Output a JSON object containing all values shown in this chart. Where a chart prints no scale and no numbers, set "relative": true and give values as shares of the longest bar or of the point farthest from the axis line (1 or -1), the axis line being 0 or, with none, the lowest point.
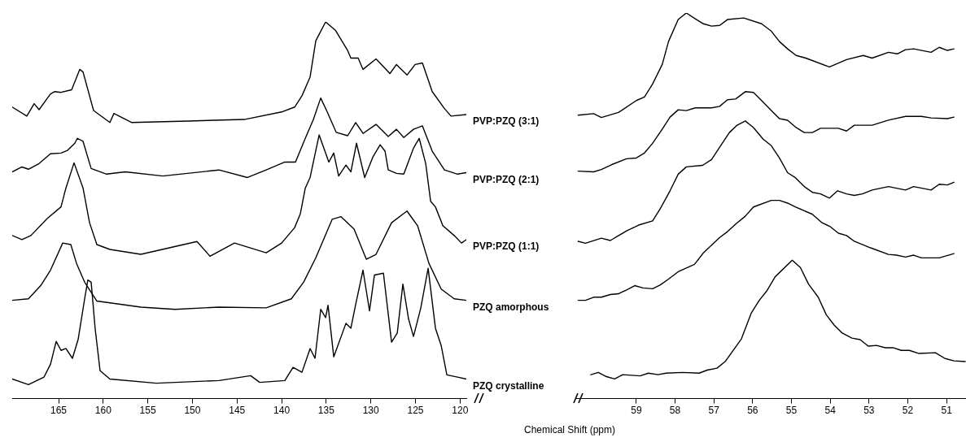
{
  "chart_data": [
    {
      "type": "line",
      "relative": true,
      "xlabel": "Chemical Shift (ppm)",
      "xlim": [
        170.2,
        119.3
      ],
      "xticks": [
        165,
        160,
        155,
        150,
        145,
        140,
        135,
        130,
        125,
        120
      ],
      "tick_labels": "x",
      "marker": "none",
      "series": [
        {
          "name": "PVP:PZQ (3:1)",
          "color": "#000000",
          "x": [
            170.2,
            168.56,
            167.74,
            167.19,
            165.91,
            165.46,
            164.73,
            163.54,
            162.63,
            162.26,
            161.08,
            159.25,
            158.8,
            156.79,
            150.49,
            144.2,
            140.0,
            138.54,
            137.72,
            136.81,
            136.17,
            135.07,
            133.98,
            132.6,
            132.24,
            131.42,
            130.88,
            129.42,
            127.86,
            127.13,
            125.95,
            125.04,
            124.22,
            123.12,
            121.75,
            121.02,
            119.3
          ],
          "values": [
            0.774,
            0.75,
            0.783,
            0.767,
            0.809,
            0.815,
            0.813,
            0.82,
            0.874,
            0.867,
            0.765,
            0.733,
            0.757,
            0.733,
            0.737,
            0.741,
            0.761,
            0.774,
            0.804,
            0.854,
            0.95,
            1,
            0.978,
            0.924,
            0.904,
            0.904,
            0.874,
            0.902,
            0.863,
            0.887,
            0.859,
            0.887,
            0.891,
            0.815,
            0.77,
            0.75,
            0.754
          ]
        },
        {
          "name": "PVP:PZQ (2:1)",
          "color": "#000000",
          "x": [
            170.2,
            169.11,
            168.38,
            167.19,
            165.91,
            164.73,
            164.0,
            163.18,
            162.9,
            162.26,
            161.35,
            159.62,
            157.52,
            153.32,
            147.03,
            143.83,
            141.73,
            139.64,
            138.45,
            137.35,
            136.44,
            135.62,
            134.89,
            133.89,
            132.6,
            131.7,
            130.88,
            129.42,
            128.05,
            127.13,
            126.31,
            125.22,
            124.22,
            123.12,
            121.75,
            120.29,
            119.3
          ],
          "values": [
            0.602,
            0.615,
            0.609,
            0.624,
            0.65,
            0.652,
            0.659,
            0.678,
            0.691,
            0.683,
            0.611,
            0.596,
            0.602,
            0.591,
            0.607,
            0.587,
            0.607,
            0.628,
            0.628,
            0.691,
            0.741,
            0.798,
            0.761,
            0.707,
            0.698,
            0.733,
            0.704,
            0.728,
            0.696,
            0.715,
            0.693,
            0.715,
            0.724,
            0.657,
            0.607,
            0.596,
            0.6
          ]
        },
        {
          "name": "PVP:PZQ (1:1)",
          "color": "#000000",
          "x": [
            170.2,
            169.11,
            168.1,
            166.28,
            164.73,
            164.18,
            163.27,
            162.26,
            161.53,
            160.71,
            159.25,
            155.78,
            149.49,
            148.03,
            145.29,
            141.73,
            140.0,
            138.54,
            137.9,
            137.35,
            136.81,
            135.8,
            134.71,
            134.16,
            133.61,
            132.79,
            132.24,
            131.61,
            130.69,
            129.78,
            128.96,
            128.41,
            128.05,
            127.13,
            126.31,
            125.22,
            124.58,
            123.85,
            123.3,
            122.76,
            121.93,
            120.66,
            119.84,
            119.3
          ],
          "values": [
            0.433,
            0.422,
            0.433,
            0.478,
            0.509,
            0.559,
            0.626,
            0.559,
            0.467,
            0.409,
            0.396,
            0.383,
            0.417,
            0.378,
            0.413,
            0.387,
            0.413,
            0.454,
            0.491,
            0.559,
            0.587,
            0.7,
            0.628,
            0.652,
            0.591,
            0.62,
            0.602,
            0.678,
            0.587,
            0.641,
            0.674,
            0.657,
            0.607,
            0.598,
            0.596,
            0.665,
            0.691,
            0.624,
            0.524,
            0.509,
            0.459,
            0.433,
            0.413,
            0.422
          ]
        },
        {
          "name": "PZQ amorphous",
          "color": "#000000",
          "x": [
            170.2,
            168.38,
            167.01,
            165.91,
            164.54,
            163.63,
            162.99,
            162.08,
            160.71,
            155.78,
            151.95,
            147.03,
            141.73,
            138.91,
            137.54,
            136.17,
            134.34,
            133.34,
            131.88,
            130.51,
            129.42,
            127.68,
            125.95,
            124.76,
            123.49,
            122.12,
            120.66,
            119.3
          ],
          "values": [
            0.261,
            0.265,
            0.3,
            0.341,
            0.413,
            0.409,
            0.359,
            0.309,
            0.259,
            0.243,
            0.237,
            0.243,
            0.241,
            0.265,
            0.309,
            0.374,
            0.476,
            0.483,
            0.45,
            0.37,
            0.383,
            0.467,
            0.498,
            0.459,
            0.359,
            0.291,
            0.265,
            0.261
          ]
        },
        {
          "name": "PZQ crystalline",
          "color": "#000000",
          "x": [
            170.2,
            168.38,
            166.64,
            165.91,
            165.27,
            164.73,
            164.18,
            163.45,
            162.81,
            162.08,
            161.72,
            161.35,
            160.89,
            160.35,
            159.25,
            154.05,
            147.03,
            143.47,
            142.46,
            139.64,
            138.72,
            137.72,
            136.81,
            136.26,
            135.62,
            135.07,
            134.8,
            134.16,
            132.79,
            132.24,
            131.7,
            130.88,
            130.15,
            129.6,
            128.59,
            127.68,
            127.04,
            126.41,
            125.77,
            125.22,
            124.4,
            123.58,
            122.76,
            122.12,
            121.48,
            120.29,
            119.3
          ],
          "values": [
            0.052,
            0.037,
            0.057,
            0.091,
            0.152,
            0.128,
            0.133,
            0.107,
            0.157,
            0.265,
            0.315,
            0.309,
            0.183,
            0.074,
            0.052,
            0.041,
            0.048,
            0.061,
            0.043,
            0.048,
            0.083,
            0.07,
            0.133,
            0.107,
            0.237,
            0.215,
            0.248,
            0.111,
            0.2,
            0.187,
            0.25,
            0.341,
            0.233,
            0.328,
            0.333,
            0.15,
            0.174,
            0.304,
            0.211,
            0.165,
            0.241,
            0.346,
            0.187,
            0.141,
            0.063,
            0.057,
            0.052
          ]
        }
      ]
    },
    {
      "type": "line",
      "relative": true,
      "xlim": [
        60.55,
        50.5
      ],
      "xticks": [
        59,
        58,
        57,
        56,
        55,
        54,
        53,
        52,
        51
      ],
      "tick_labels": "x",
      "marker": "none",
      "series": [
        {
          "color": "#000000",
          "x": [
            60.5,
            60.1,
            59.9,
            59.46,
            59.0,
            58.79,
            58.58,
            58.33,
            58.17,
            57.92,
            57.71,
            57.48,
            57.27,
            57.06,
            56.85,
            56.65,
            56.23,
            55.77,
            55.52,
            55.31,
            55.1,
            54.88,
            54.63,
            54.02,
            53.58,
            53.15,
            52.92,
            52.5,
            52.27,
            52.06,
            51.85,
            51.4,
            51.19,
            50.98,
            50.81
          ],
          "values": [
            0.735,
            0.739,
            0.729,
            0.742,
            0.773,
            0.782,
            0.816,
            0.867,
            0.926,
            0.983,
            1,
            0.985,
            0.972,
            0.966,
            0.968,
            0.983,
            0.987,
            0.972,
            0.953,
            0.926,
            0.907,
            0.89,
            0.883,
            0.86,
            0.879,
            0.89,
            0.883,
            0.898,
            0.894,
            0.905,
            0.907,
            0.898,
            0.911,
            0.903,
            0.907
          ]
        },
        {
          "color": "#000000",
          "x": [
            60.5,
            60.1,
            59.9,
            59.63,
            59.25,
            59.0,
            58.79,
            58.58,
            58.33,
            58.13,
            57.92,
            57.71,
            57.48,
            57.06,
            56.85,
            56.65,
            56.44,
            56.19,
            55.98,
            55.77,
            55.52,
            55.31,
            55.1,
            54.88,
            54.67,
            54.46,
            54.25,
            53.79,
            53.58,
            53.38,
            52.92,
            52.5,
            52.06,
            51.65,
            51.4,
            50.98,
            50.81
          ],
          "values": [
            0.59,
            0.588,
            0.594,
            0.607,
            0.622,
            0.624,
            0.637,
            0.662,
            0.699,
            0.73,
            0.749,
            0.747,
            0.754,
            0.754,
            0.758,
            0.775,
            0.777,
            0.796,
            0.794,
            0.773,
            0.747,
            0.726,
            0.722,
            0.703,
            0.69,
            0.69,
            0.701,
            0.701,
            0.694,
            0.709,
            0.709,
            0.722,
            0.732,
            0.732,
            0.728,
            0.726,
            0.73
          ]
        },
        {
          "color": "#000000",
          "x": [
            60.5,
            60.31,
            59.9,
            59.67,
            59.25,
            58.94,
            58.58,
            58.38,
            58.13,
            57.92,
            57.71,
            57.29,
            57.06,
            56.85,
            56.6,
            56.4,
            56.19,
            55.98,
            55.73,
            55.52,
            55.31,
            55.1,
            54.9,
            54.67,
            54.46,
            54.25,
            54.02,
            53.81,
            53.58,
            53.38,
            53.17,
            52.92,
            52.5,
            52.06,
            51.85,
            51.4,
            51.19,
            50.98,
            50.81
          ],
          "values": [
            0.408,
            0.403,
            0.416,
            0.41,
            0.435,
            0.45,
            0.461,
            0.493,
            0.539,
            0.582,
            0.601,
            0.605,
            0.62,
            0.652,
            0.69,
            0.709,
            0.72,
            0.703,
            0.673,
            0.656,
            0.624,
            0.586,
            0.573,
            0.55,
            0.535,
            0.531,
            0.52,
            0.539,
            0.531,
            0.527,
            0.531,
            0.541,
            0.55,
            0.541,
            0.55,
            0.541,
            0.556,
            0.554,
            0.561
          ]
        },
        {
          "color": "#000000",
          "x": [
            60.5,
            60.31,
            60.1,
            59.9,
            59.67,
            59.46,
            59.25,
            59.04,
            58.83,
            58.58,
            58.38,
            58.17,
            57.92,
            57.5,
            57.27,
            56.85,
            56.65,
            56.4,
            56.19,
            55.98,
            55.52,
            55.31,
            55.1,
            54.9,
            54.46,
            54.21,
            54.0,
            53.79,
            53.58,
            53.38,
            52.96,
            52.5,
            52.29,
            52.06,
            51.85,
            51.65,
            51.19,
            50.81
          ],
          "values": [
            0.255,
            0.255,
            0.263,
            0.263,
            0.27,
            0.272,
            0.282,
            0.293,
            0.287,
            0.285,
            0.295,
            0.31,
            0.329,
            0.348,
            0.378,
            0.418,
            0.433,
            0.456,
            0.473,
            0.497,
            0.514,
            0.514,
            0.507,
            0.497,
            0.478,
            0.456,
            0.446,
            0.429,
            0.423,
            0.408,
            0.391,
            0.374,
            0.372,
            0.367,
            0.372,
            0.365,
            0.365,
            0.376
          ]
        },
        {
          "color": "#000000",
          "x": [
            60.17,
            59.98,
            59.77,
            59.56,
            59.35,
            58.9,
            58.69,
            58.44,
            58.23,
            57.81,
            57.38,
            57.17,
            56.92,
            56.71,
            56.29,
            56.04,
            55.83,
            55.63,
            55.42,
            54.98,
            54.77,
            54.56,
            54.31,
            54.1,
            53.9,
            53.69,
            53.44,
            53.23,
            53.02,
            52.81,
            52.58,
            52.38,
            52.17,
            51.96,
            51.71,
            51.29,
            51.04,
            50.81,
            50.52
          ],
          "values": [
            0.062,
            0.068,
            0.057,
            0.051,
            0.062,
            0.059,
            0.066,
            0.062,
            0.066,
            0.068,
            0.066,
            0.074,
            0.079,
            0.096,
            0.155,
            0.221,
            0.255,
            0.28,
            0.316,
            0.359,
            0.34,
            0.297,
            0.263,
            0.217,
            0.191,
            0.17,
            0.157,
            0.153,
            0.136,
            0.138,
            0.132,
            0.132,
            0.125,
            0.125,
            0.117,
            0.119,
            0.104,
            0.098,
            0.096
          ]
        }
      ]
    }
  ]
}
